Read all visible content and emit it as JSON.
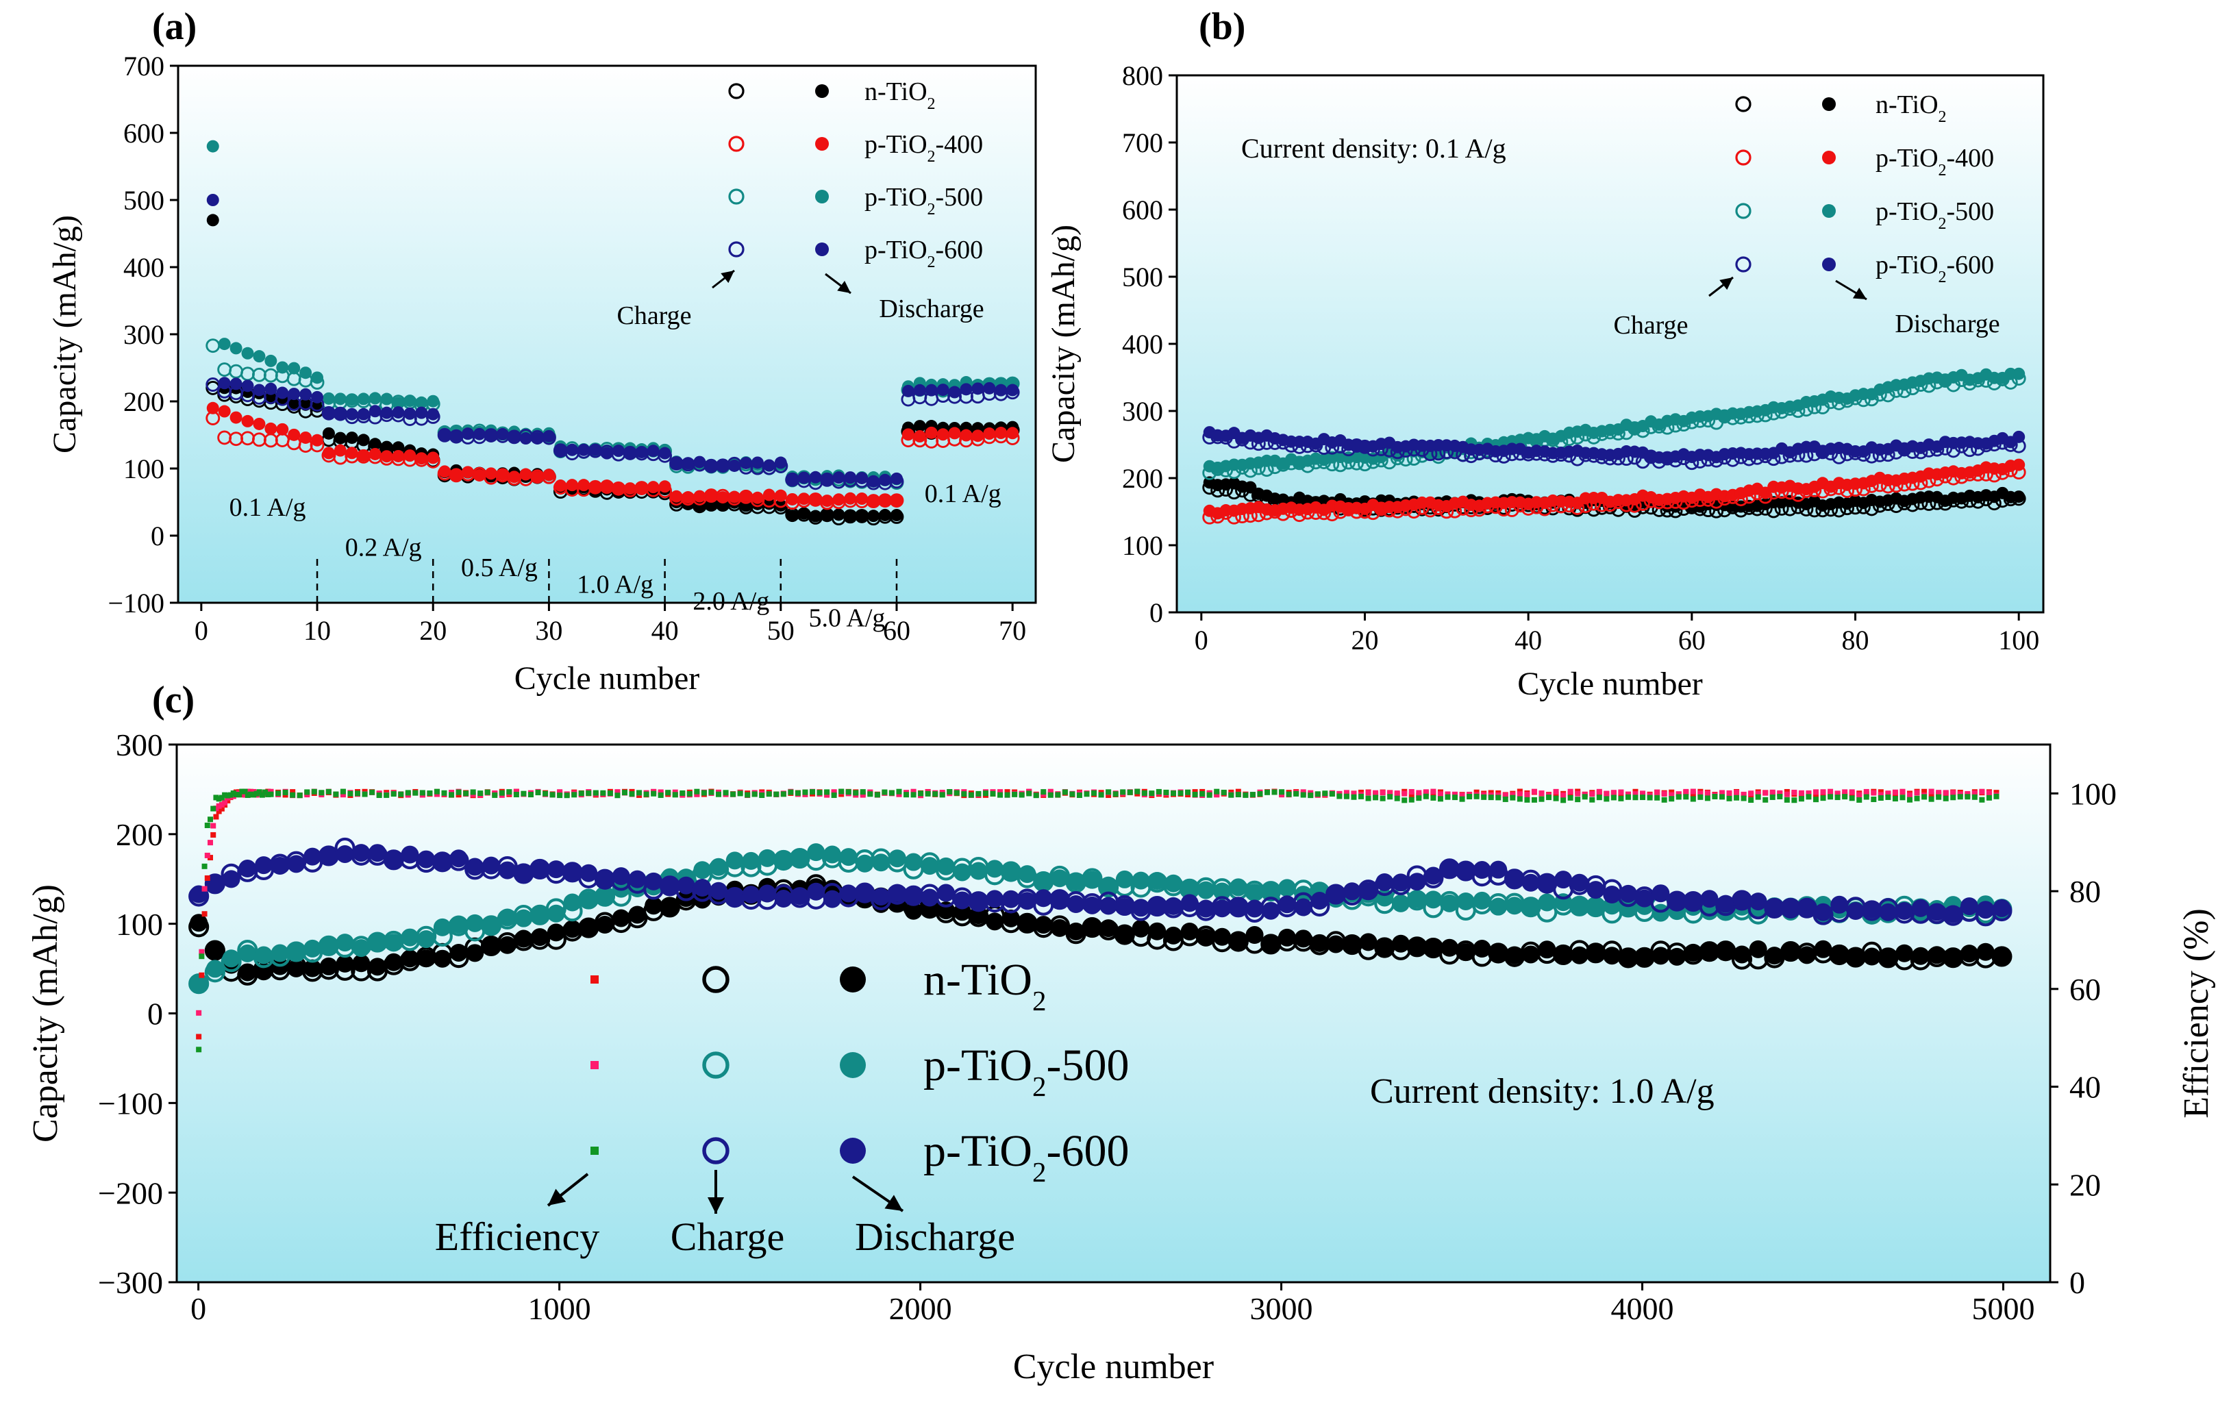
{
  "colors": {
    "bg_top": "#ffffff",
    "bg_bottom": "#9fe3ee",
    "n": "#000000",
    "p400": "#ee1111",
    "p500": "#128a86",
    "p600": "#1a1a8c",
    "eff_n": "#ee1111",
    "eff_500": "#ff1c6e",
    "eff_600": "#129624"
  },
  "chart_data": [
    {
      "panel": "(a)",
      "type": "scatter",
      "xlabel": "Cycle number",
      "ylabel": "Capacity (mAh/g)",
      "xlim": [
        -2,
        72
      ],
      "ylim": [
        -100,
        700
      ],
      "xticks": [
        0,
        10,
        20,
        30,
        40,
        50,
        60,
        70
      ],
      "yticks": [
        -100,
        0,
        100,
        200,
        300,
        400,
        500,
        600,
        700
      ],
      "ytick_labels": [
        "−100",
        "0",
        "100",
        "200",
        "300",
        "400",
        "500",
        "600",
        "700"
      ],
      "legend": {
        "position": "top-right",
        "charge_label": "Charge",
        "discharge_label": "Discharge",
        "entries": [
          {
            "base": "n-TiO",
            "sub": "2",
            "tail": "",
            "color_key": "n"
          },
          {
            "base": "p-TiO",
            "sub": "2",
            "tail": "-400",
            "color_key": "p400"
          },
          {
            "base": "p-TiO",
            "sub": "2",
            "tail": "-500",
            "color_key": "p500"
          },
          {
            "base": "p-TiO",
            "sub": "2",
            "tail": "-600",
            "color_key": "p600"
          }
        ]
      },
      "rate_labels": [
        "0.1 A/g",
        "0.2 A/g",
        "0.5 A/g",
        "1.0 A/g",
        "2.0 A/g",
        "5.0 A/g",
        "0.1 A/g"
      ],
      "step_boundaries": [
        10,
        20,
        30,
        40,
        50,
        60
      ],
      "series": [
        {
          "name": "n-TiO2",
          "first_discharge": 470,
          "first_charge": 220,
          "step_charge": [
            [
              215,
              185
            ],
            [
              145,
              115
            ],
            [
              92,
              85
            ],
            [
              68,
              65
            ],
            [
              46,
              44
            ],
            [
              29,
              27
            ],
            [
              155,
              160
            ]
          ],
          "step_discharge": [
            [
              225,
              190
            ],
            [
              150,
              122
            ],
            [
              95,
              90
            ],
            [
              70,
              67
            ],
            [
              48,
              46
            ],
            [
              31,
              29
            ],
            [
              160,
              163
            ]
          ]
        },
        {
          "name": "p-TiO2-400",
          "first_discharge": 190,
          "first_charge": 175,
          "step_charge": [
            [
              150,
              135
            ],
            [
              120,
              110
            ],
            [
              90,
              86
            ],
            [
              72,
              68
            ],
            [
              58,
              55
            ],
            [
              52,
              50
            ],
            [
              140,
              148
            ]
          ],
          "step_discharge": [
            [
              190,
              140
            ],
            [
              125,
              115
            ],
            [
              93,
              89
            ],
            [
              75,
              72
            ],
            [
              60,
              58
            ],
            [
              55,
              53
            ],
            [
              150,
              152
            ]
          ]
        },
        {
          "name": "p-TiO2-500",
          "first_discharge": 580,
          "first_charge": 283,
          "step_charge": [
            [
              250,
              230
            ],
            [
              200,
              195
            ],
            [
              155,
              150
            ],
            [
              128,
              125
            ],
            [
              105,
              103
            ],
            [
              85,
              82
            ],
            [
              215,
              225
            ]
          ],
          "step_discharge": [
            [
              290,
              235
            ],
            [
              205,
              198
            ],
            [
              158,
              152
            ],
            [
              130,
              127
            ],
            [
              108,
              106
            ],
            [
              88,
              85
            ],
            [
              225,
              228
            ]
          ]
        },
        {
          "name": "p-TiO2-600",
          "first_discharge": 500,
          "first_charge": 225,
          "step_charge": [
            [
              215,
              195
            ],
            [
              180,
              175
            ],
            [
              148,
              145
            ],
            [
              125,
              122
            ],
            [
              105,
              103
            ],
            [
              82,
              80
            ],
            [
              205,
              212
            ]
          ],
          "step_discharge": [
            [
              230,
              205
            ],
            [
              185,
              180
            ],
            [
              150,
              147
            ],
            [
              127,
              124
            ],
            [
              108,
              106
            ],
            [
              85,
              83
            ],
            [
              215,
              218
            ]
          ]
        }
      ]
    },
    {
      "panel": "(b)",
      "type": "scatter",
      "xlabel": "Cycle number",
      "ylabel": "Capacity (mAh/g)",
      "xlim": [
        -3,
        103
      ],
      "ylim": [
        0,
        800
      ],
      "xticks": [
        0,
        20,
        40,
        60,
        80,
        100
      ],
      "yticks": [
        0,
        100,
        200,
        300,
        400,
        500,
        600,
        700,
        800
      ],
      "annotation": "Current density: 0.1 A/g",
      "legend": {
        "position": "top-right",
        "charge_label": "Charge",
        "discharge_label": "Discharge"
      },
      "series": [
        {
          "name": "n-TiO2",
          "cycles": [
            1,
            5,
            10,
            20,
            40,
            60,
            80,
            100
          ],
          "capacity": [
            190,
            185,
            165,
            160,
            162,
            158,
            160,
            172
          ]
        },
        {
          "name": "p-TiO2-400",
          "cycles": [
            1,
            10,
            20,
            40,
            60,
            80,
            100
          ],
          "capacity": [
            148,
            152,
            155,
            160,
            170,
            190,
            215
          ]
        },
        {
          "name": "p-TiO2-500",
          "cycles": [
            1,
            10,
            20,
            30,
            40,
            60,
            80,
            90,
            100
          ],
          "capacity": [
            215,
            222,
            228,
            240,
            255,
            285,
            320,
            345,
            350
          ]
        },
        {
          "name": "p-TiO2-600",
          "cycles": [
            1,
            10,
            20,
            30,
            40,
            60,
            75,
            80,
            100
          ],
          "capacity": [
            265,
            255,
            248,
            242,
            238,
            230,
            240,
            238,
            255
          ]
        }
      ]
    },
    {
      "panel": "(c)",
      "type": "scatter",
      "xlabel": "Cycle number",
      "ylabel": "Capacity (mAh/g)",
      "ylabel_right": "Efficiency (%)",
      "xlim": [
        -60,
        5130
      ],
      "ylim": [
        -300,
        300
      ],
      "ylim_right": [
        0,
        110
      ],
      "xticks": [
        0,
        1000,
        2000,
        3000,
        4000,
        5000
      ],
      "yticks": [
        -300,
        -200,
        -100,
        0,
        100,
        200,
        300
      ],
      "ytick_labels": [
        "−300",
        "−200",
        "−100",
        "0",
        "100",
        "200",
        "300"
      ],
      "yticks_right": [
        0,
        20,
        40,
        60,
        80,
        100
      ],
      "annotation": "Current density: 1.0 A/g",
      "legend": {
        "position": "center-left",
        "efficiency_label": "Efficiency",
        "charge_label": "Charge",
        "discharge_label": "Discharge",
        "entries": [
          {
            "base": "n-TiO",
            "sub": "2",
            "tail": ""
          },
          {
            "base": "p-TiO",
            "sub": "2",
            "tail": "-500"
          },
          {
            "base": "p-TiO",
            "sub": "2",
            "tail": "-600"
          }
        ]
      },
      "series": [
        {
          "name": "n-TiO2",
          "cycles": [
            1,
            100,
            500,
            1000,
            1400,
            1700,
            2000,
            2500,
            3000,
            3500,
            4000,
            4500,
            5000
          ],
          "capacity": [
            95,
            45,
            52,
            85,
            130,
            140,
            115,
            90,
            80,
            68,
            65,
            65,
            62
          ]
        },
        {
          "name": "p-TiO2-500",
          "cycles": [
            1,
            100,
            500,
            1000,
            1400,
            1700,
            2000,
            2500,
            3000,
            3500,
            4000,
            4500,
            5000
          ],
          "capacity": [
            30,
            65,
            75,
            115,
            160,
            175,
            165,
            145,
            135,
            120,
            115,
            115,
            115
          ]
        },
        {
          "name": "p-TiO2-600",
          "cycles": [
            1,
            100,
            400,
            1000,
            1500,
            2000,
            2500,
            3000,
            3500,
            4000,
            4500,
            5000
          ],
          "capacity": [
            130,
            155,
            180,
            155,
            130,
            130,
            120,
            115,
            160,
            130,
            115,
            112
          ]
        },
        {
          "name": "Efficiency n-TiO2",
          "axis": "right",
          "cycles": [
            1,
            20,
            50,
            100,
            3200,
            5000
          ],
          "efficiency": [
            50,
            80,
            96,
            100,
            100,
            100
          ]
        },
        {
          "name": "Efficiency p-TiO2-500",
          "axis": "right",
          "cycles": [
            1,
            20,
            50,
            100,
            3200,
            5000
          ],
          "efficiency": [
            55,
            85,
            97,
            100,
            100,
            100
          ]
        },
        {
          "name": "Efficiency p-TiO2-600",
          "axis": "right",
          "cycles": [
            1,
            20,
            50,
            100,
            3150,
            3200,
            5000
          ],
          "efficiency": [
            48,
            92,
            99,
            100,
            100,
            99,
            99
          ]
        }
      ]
    }
  ]
}
